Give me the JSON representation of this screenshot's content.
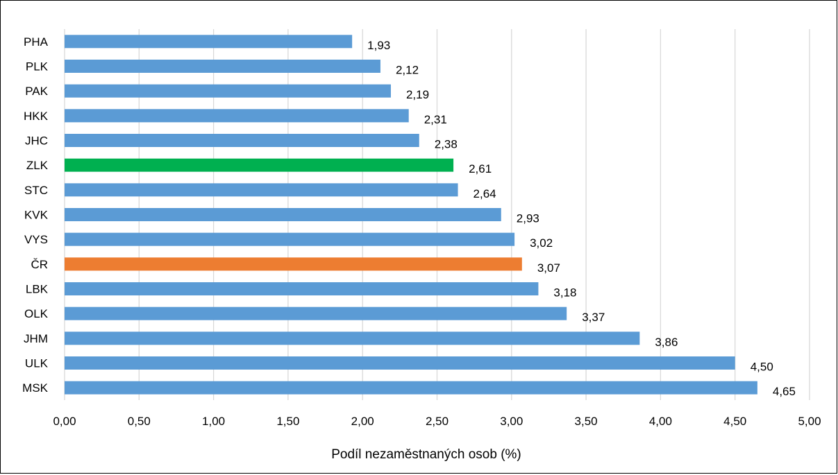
{
  "chart_data": {
    "type": "bar",
    "orientation": "horizontal",
    "categories": [
      "PHA",
      "PLK",
      "PAK",
      "HKK",
      "JHC",
      "ZLK",
      "STC",
      "KVK",
      "VYS",
      "ČR",
      "LBK",
      "OLK",
      "JHM",
      "ULK",
      "MSK"
    ],
    "values": [
      1.93,
      2.12,
      2.19,
      2.31,
      2.38,
      2.61,
      2.64,
      2.93,
      3.02,
      3.07,
      3.18,
      3.37,
      3.86,
      4.5,
      4.65
    ],
    "value_labels": [
      "1,93",
      "2,12",
      "2,19",
      "2,31",
      "2,38",
      "2,61",
      "2,64",
      "2,93",
      "3,02",
      "3,07",
      "3,18",
      "3,37",
      "3,86",
      "4,50",
      "4,65"
    ],
    "bar_colors": [
      "#5b9bd5",
      "#5b9bd5",
      "#5b9bd5",
      "#5b9bd5",
      "#5b9bd5",
      "#00b050",
      "#5b9bd5",
      "#5b9bd5",
      "#5b9bd5",
      "#ed7d31",
      "#5b9bd5",
      "#5b9bd5",
      "#5b9bd5",
      "#5b9bd5",
      "#5b9bd5"
    ],
    "xlabel": "Podíl nezaměstnaných osob (%)",
    "ylabel": "",
    "title": "",
    "xlim": [
      0,
      5
    ],
    "x_ticks": [
      0,
      0.5,
      1,
      1.5,
      2,
      2.5,
      3,
      3.5,
      4,
      4.5,
      5
    ],
    "x_tick_labels": [
      "0,00",
      "0,50",
      "1,00",
      "1,50",
      "2,00",
      "2,50",
      "3,00",
      "3,50",
      "4,00",
      "4,50",
      "5,00"
    ],
    "grid": true,
    "legend": "none"
  }
}
